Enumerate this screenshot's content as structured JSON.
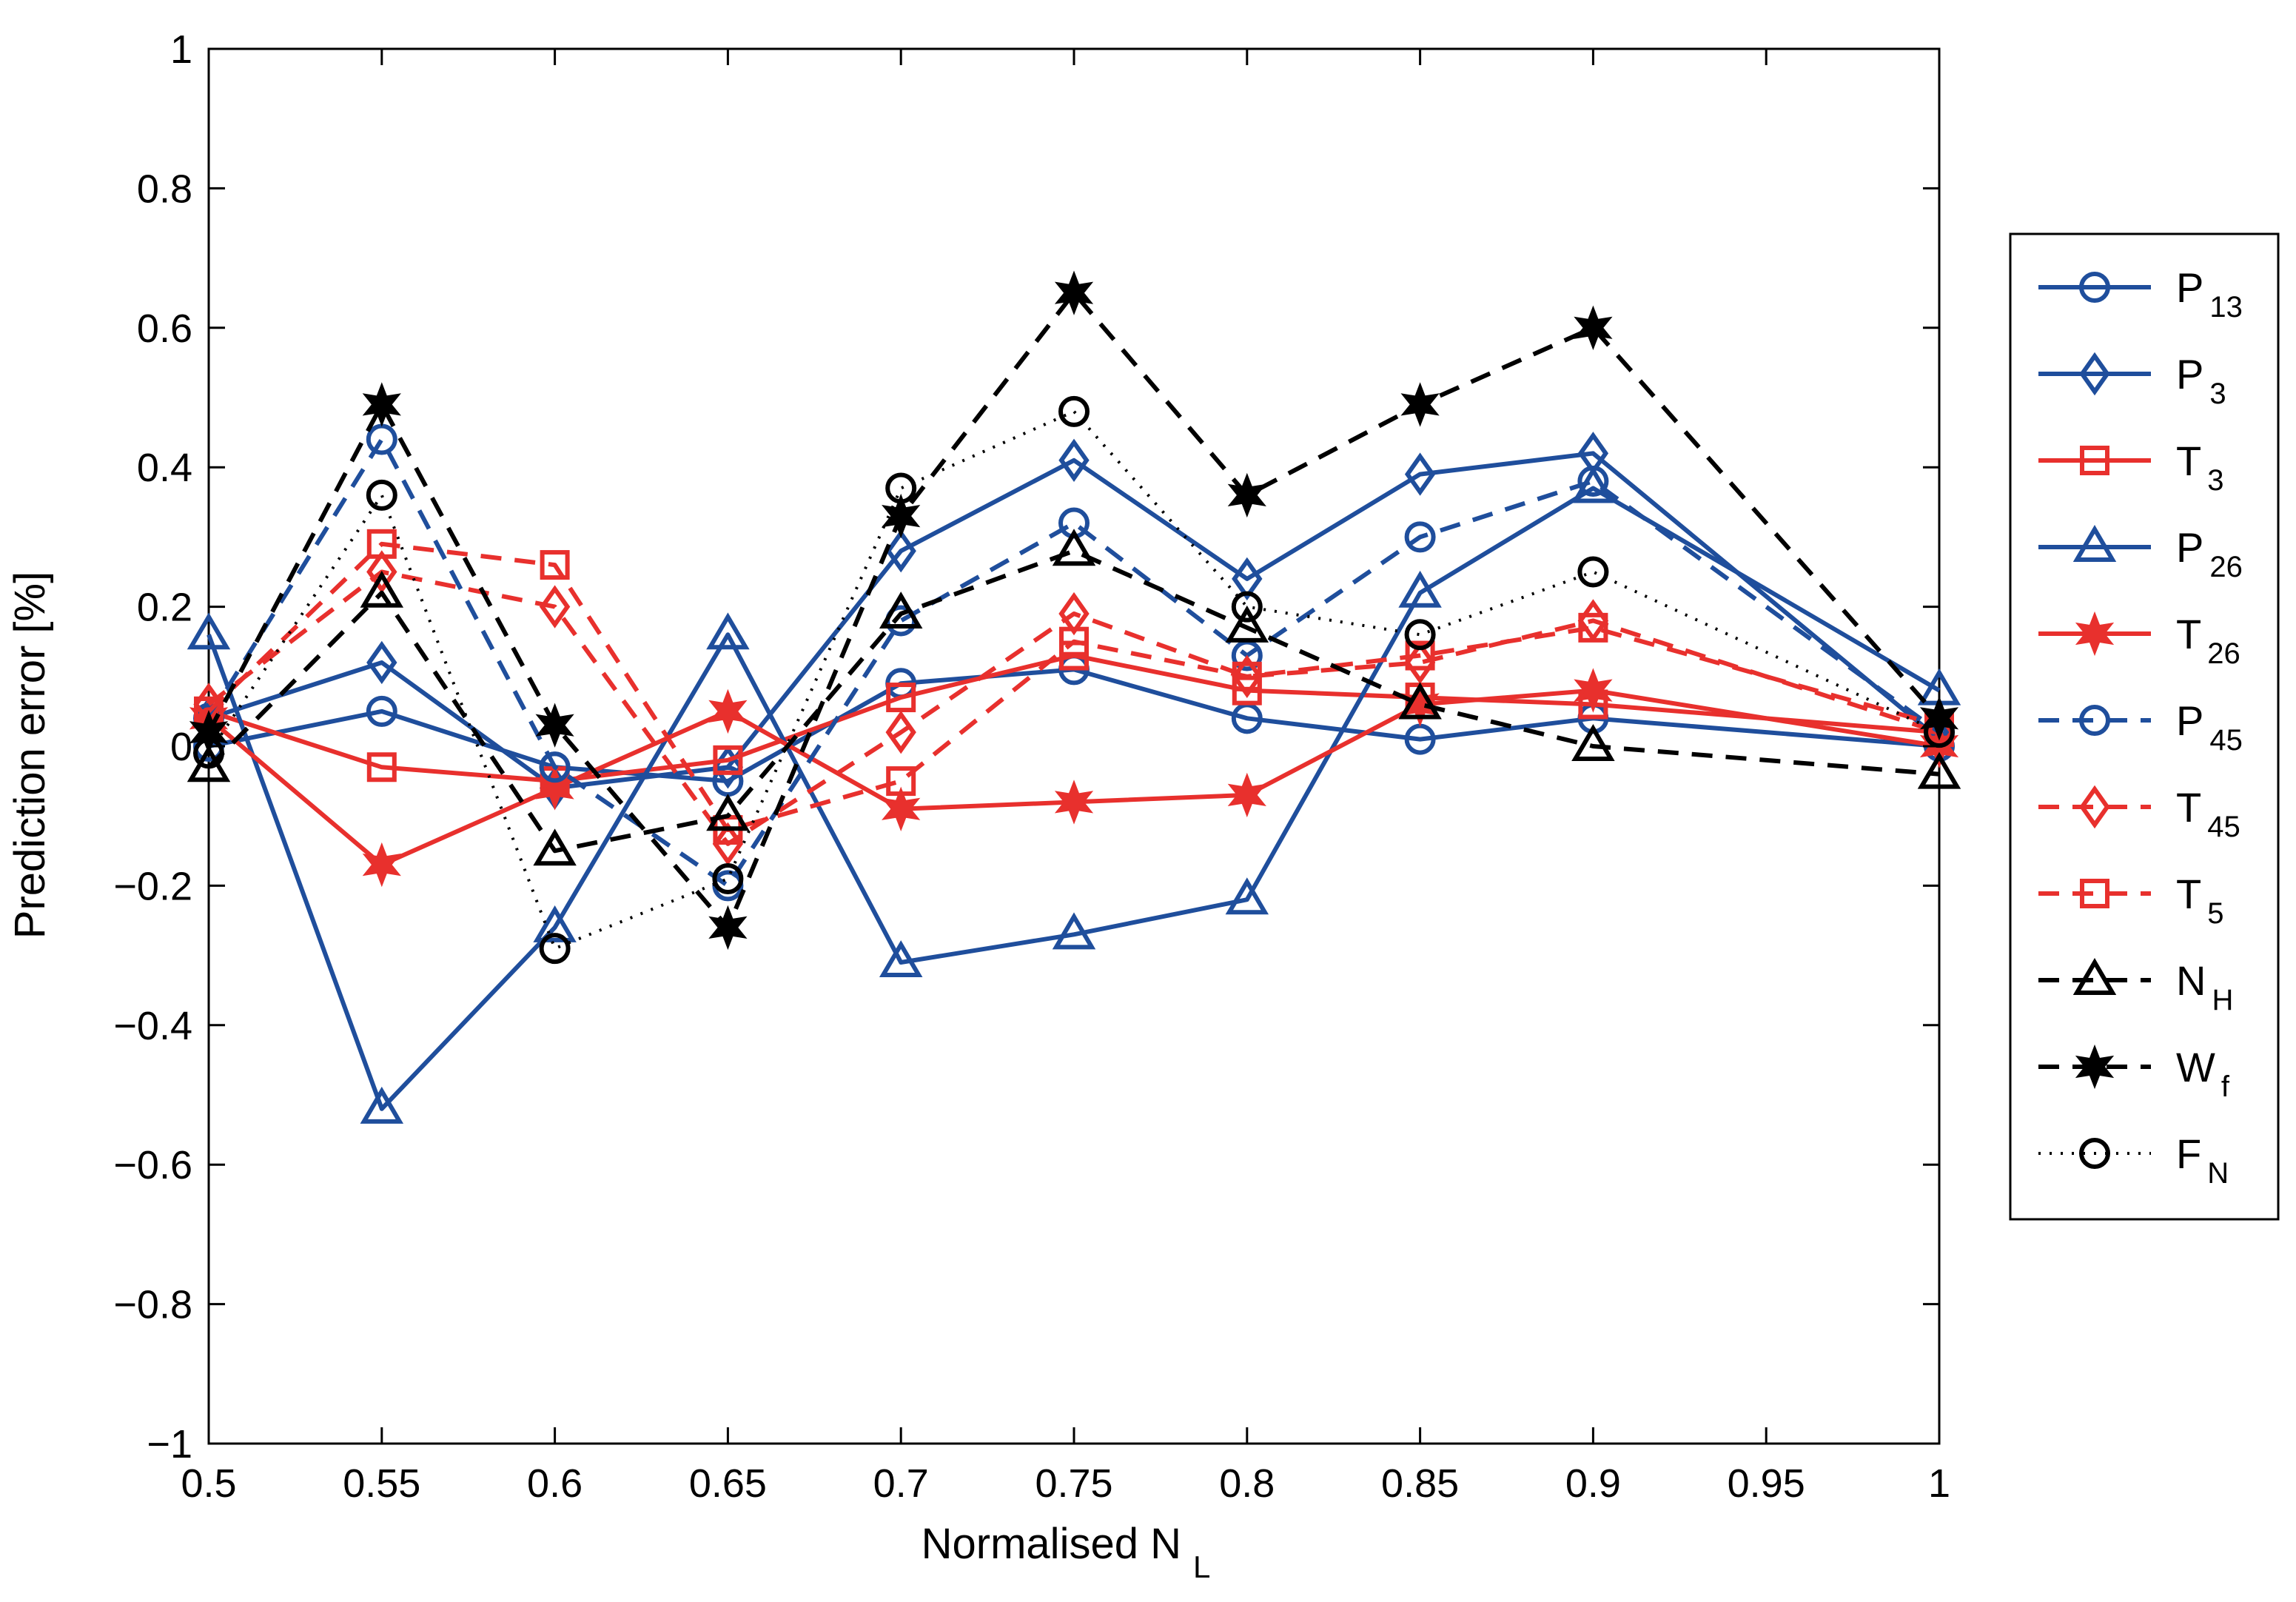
{
  "chart_data": {
    "type": "line",
    "title": "",
    "xlabel": "Normalised N",
    "xlabel_sub": "L",
    "ylabel": "Prediction error [%]",
    "xlim": [
      0.5,
      1
    ],
    "ylim": [
      -1,
      1
    ],
    "x_ticks": [
      "0.5",
      "0.55",
      "0.6",
      "0.65",
      "0.7",
      "0.75",
      "0.8",
      "0.85",
      "0.9",
      "0.95",
      "1"
    ],
    "y_ticks": [
      "−1",
      "−0.8",
      "−0.6",
      "−0.4",
      "−0.2",
      "0",
      "0.2",
      "0.4",
      "0.6",
      "0.8",
      "1"
    ],
    "grid": false,
    "legend_position": "right-outside",
    "x": [
      0.5,
      0.55,
      0.6,
      0.65,
      0.7,
      0.75,
      0.8,
      0.85,
      0.9,
      1.0
    ],
    "series": [
      {
        "name": "P",
        "sub": "13",
        "color": "#1f4e9c",
        "dash": "solid",
        "marker": "circle",
        "values": [
          0.0,
          0.05,
          -0.03,
          -0.05,
          0.09,
          0.11,
          0.04,
          0.01,
          0.04,
          0.0
        ]
      },
      {
        "name": "P",
        "sub": "3",
        "color": "#1f4e9c",
        "dash": "solid",
        "marker": "diamond",
        "values": [
          0.04,
          0.12,
          -0.06,
          -0.03,
          0.28,
          0.41,
          0.24,
          0.39,
          0.42,
          0.01
        ]
      },
      {
        "name": "T",
        "sub": "3",
        "color": "#e8302d",
        "dash": "solid",
        "marker": "square",
        "values": [
          0.05,
          -0.03,
          -0.05,
          -0.02,
          0.07,
          0.13,
          0.08,
          0.07,
          0.06,
          0.02
        ]
      },
      {
        "name": "P",
        "sub": "26",
        "color": "#1f4e9c",
        "dash": "solid",
        "marker": "triangle",
        "values": [
          0.16,
          -0.52,
          -0.26,
          0.16,
          -0.31,
          -0.27,
          -0.22,
          0.22,
          0.37,
          0.08
        ]
      },
      {
        "name": "T",
        "sub": "26",
        "color": "#e8302d",
        "dash": "solid",
        "marker": "star",
        "values": [
          0.04,
          -0.17,
          -0.06,
          0.05,
          -0.09,
          -0.08,
          -0.07,
          0.06,
          0.08,
          0.0
        ]
      },
      {
        "name": "P",
        "sub": "45",
        "color": "#1f4e9c",
        "dash": "dashed",
        "marker": "circle",
        "values": [
          0.04,
          0.44,
          -0.03,
          -0.2,
          0.18,
          0.32,
          0.13,
          0.3,
          0.38,
          0.02
        ]
      },
      {
        "name": "T",
        "sub": "45",
        "color": "#e8302d",
        "dash": "dashed",
        "marker": "diamond",
        "values": [
          0.06,
          0.25,
          0.2,
          -0.14,
          0.02,
          0.19,
          0.1,
          0.12,
          0.18,
          0.02
        ]
      },
      {
        "name": "T",
        "sub": "5",
        "color": "#e8302d",
        "dash": "dashed",
        "marker": "square",
        "values": [
          0.05,
          0.29,
          0.26,
          -0.12,
          -0.05,
          0.15,
          0.1,
          0.13,
          0.17,
          0.03
        ]
      },
      {
        "name": "N",
        "sub": "H",
        "color": "#000000",
        "dash": "dashed",
        "marker": "triangle",
        "values": [
          -0.03,
          0.22,
          -0.15,
          -0.1,
          0.19,
          0.28,
          0.17,
          0.06,
          0.0,
          -0.04
        ]
      },
      {
        "name": "W",
        "sub": "f",
        "color": "#000000",
        "dash": "dashed",
        "marker": "star",
        "values": [
          0.02,
          0.49,
          0.03,
          -0.26,
          0.33,
          0.65,
          0.36,
          0.49,
          0.6,
          0.04
        ]
      },
      {
        "name": "F",
        "sub": "N",
        "color": "#000000",
        "dash": "dotted",
        "marker": "circle",
        "values": [
          -0.01,
          0.36,
          -0.29,
          -0.19,
          0.37,
          0.48,
          0.2,
          0.16,
          0.25,
          0.02
        ]
      }
    ]
  }
}
